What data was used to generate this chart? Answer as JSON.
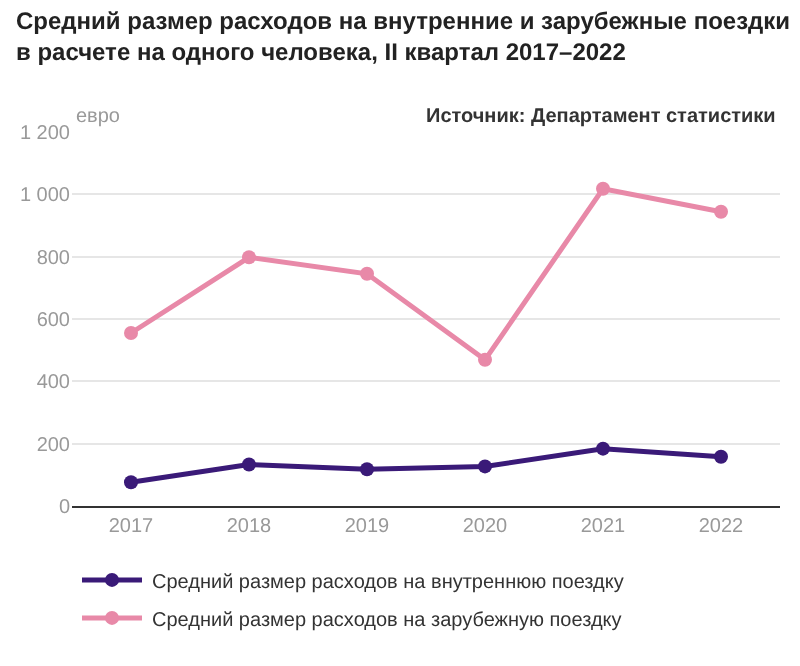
{
  "chart_data": {
    "type": "line",
    "title": "Средний размер расходов на внутренние и зарубежные поездки в расчете на одного человека, II квартал 2017–2022",
    "ylabel": "евро",
    "annotations": [
      "Источник: Департамент статистики"
    ],
    "categories": [
      "2017",
      "2018",
      "2019",
      "2020",
      "2021",
      "2022"
    ],
    "series": [
      {
        "name": "Средний размер расходов на внутреннюю поездку",
        "color": "#3a1a78",
        "values": [
          76,
          133,
          118,
          127,
          184,
          158
        ]
      },
      {
        "name": "Средний размер расходов на зарубежную поездку",
        "color": "#e889a8",
        "values": [
          555,
          798,
          745,
          469,
          1018,
          944
        ]
      }
    ],
    "ylim": [
      0,
      1200
    ],
    "yticks": [
      0,
      200,
      400,
      600,
      800,
      {
        "value": 1000,
        "label": "1 000"
      },
      {
        "value": 1200,
        "label": "1 200"
      }
    ],
    "grid": "y",
    "legend": "bottom",
    "marker": "circle",
    "line_style": "solid"
  }
}
